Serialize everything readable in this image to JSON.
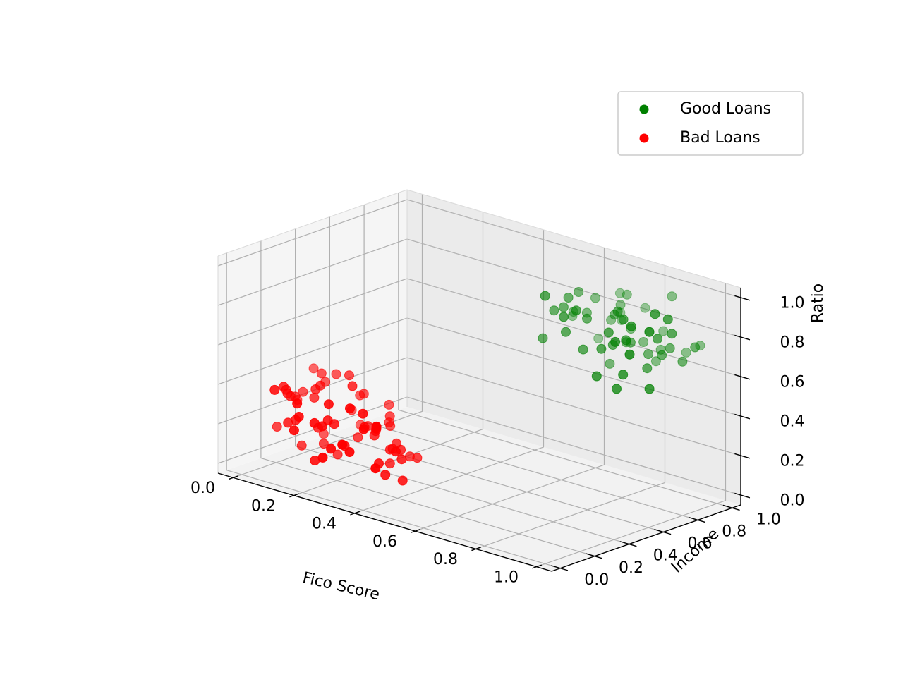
{
  "chart_data": {
    "type": "scatter",
    "projection": "3d",
    "title": "",
    "xlabel": "Fico Score",
    "ylabel": "Income",
    "zlabel": "Ratio",
    "xlim": [
      -0.05,
      1.05
    ],
    "ylim": [
      -0.05,
      1.05
    ],
    "zlim": [
      -0.05,
      1.05
    ],
    "xticks": [
      "0.0",
      "0.2",
      "0.4",
      "0.6",
      "0.8",
      "1.0"
    ],
    "yticks": [
      "0.0",
      "0.2",
      "0.4",
      "0.6",
      "0.8",
      "1.0"
    ],
    "zticks": [
      "0.0",
      "0.2",
      "0.4",
      "0.6",
      "0.8",
      "1.0"
    ],
    "grid": true,
    "legend_position": "top-right",
    "series": [
      {
        "name": "Good Loans",
        "color": "#008000",
        "x": [
          0.71,
          0.93,
          0.82,
          0.66,
          0.95,
          0.74,
          0.88,
          0.69,
          0.97,
          0.79,
          0.85,
          0.63,
          0.91,
          0.77,
          0.68,
          0.99,
          0.83,
          0.72,
          0.94,
          0.87,
          0.65,
          0.8,
          0.96,
          0.73,
          0.9,
          0.76,
          0.84,
          0.67,
          0.92,
          0.78,
          0.7,
          0.98,
          0.86,
          0.64,
          0.89,
          0.75,
          0.81,
          0.95,
          0.69,
          0.83,
          0.72,
          0.9,
          0.66,
          0.87,
          0.78,
          0.97,
          0.74,
          0.85,
          0.62,
          0.93,
          0.8,
          0.71,
          0.96,
          0.68,
          0.88,
          0.76,
          0.84,
          0.91,
          0.73,
          0.82
        ],
        "y": [
          0.62,
          0.85,
          0.74,
          0.91,
          0.58,
          0.68,
          0.95,
          0.79,
          0.66,
          0.87,
          0.72,
          0.64,
          0.98,
          0.81,
          0.7,
          0.89,
          0.6,
          0.93,
          0.76,
          0.83,
          0.67,
          0.96,
          0.71,
          0.86,
          0.63,
          0.9,
          0.78,
          0.69,
          0.82,
          0.97,
          0.65,
          0.75,
          0.92,
          0.8,
          0.61,
          0.88,
          0.73,
          0.99,
          0.84,
          0.67,
          0.94,
          0.77,
          0.6,
          0.7,
          0.86,
          0.79,
          0.64,
          0.91,
          0.83,
          0.73,
          0.68,
          0.95,
          0.87,
          0.76,
          0.62,
          0.8,
          0.97,
          0.66,
          0.72,
          0.89
        ],
        "z": [
          0.88,
          0.75,
          0.92,
          0.66,
          0.81,
          0.71,
          0.96,
          0.84,
          0.62,
          0.78,
          0.9,
          0.73,
          0.68,
          0.86,
          0.94,
          0.77,
          0.64,
          0.91,
          0.83,
          0.7,
          0.87,
          0.74,
          0.98,
          0.8,
          0.67,
          0.93,
          0.76,
          0.89,
          0.72,
          0.85,
          0.79,
          0.95,
          0.69,
          0.82,
          0.6,
          0.88,
          0.75,
          0.73,
          0.9,
          0.84,
          0.77,
          0.66,
          0.97,
          0.81,
          0.71,
          0.86,
          0.92,
          0.63,
          0.78,
          0.87,
          0.74,
          0.8,
          0.69,
          0.95,
          0.83,
          0.61,
          0.76,
          0.91,
          0.85,
          0.72
        ]
      },
      {
        "name": "Bad Loans",
        "color": "#ff0000",
        "x": [
          0.12,
          0.31,
          0.05,
          0.22,
          0.38,
          0.16,
          0.27,
          0.09,
          0.34,
          0.19,
          0.02,
          0.29,
          0.41,
          0.14,
          0.24,
          0.07,
          0.36,
          0.18,
          0.32,
          0.11,
          0.26,
          0.04,
          0.39,
          0.21,
          0.15,
          0.33,
          0.08,
          0.28,
          0.17,
          0.37,
          0.1,
          0.23,
          0.3,
          0.06,
          0.35,
          0.2,
          0.13,
          0.4,
          0.25,
          0.03,
          0.32,
          0.18,
          0.27,
          0.09,
          0.36,
          0.14,
          0.22,
          0.31,
          0.05,
          0.29,
          0.16,
          0.38,
          0.11,
          0.24,
          0.34,
          0.07,
          0.19,
          0.28,
          0.13,
          0.33,
          0.21,
          0.4,
          0.1,
          0.26,
          0.17,
          0.35,
          0.06,
          0.3,
          0.23,
          0.15
        ],
        "y": [
          0.21,
          0.08,
          0.33,
          0.15,
          0.26,
          0.04,
          0.38,
          0.19,
          0.11,
          0.29,
          0.17,
          0.35,
          0.06,
          0.23,
          0.31,
          0.12,
          0.2,
          0.37,
          0.02,
          0.27,
          0.14,
          0.24,
          0.09,
          0.34,
          0.18,
          0.28,
          0.05,
          0.22,
          0.39,
          0.13,
          0.3,
          0.1,
          0.25,
          0.16,
          0.36,
          0.07,
          0.32,
          0.19,
          0.03,
          0.27,
          0.14,
          0.24,
          0.38,
          0.11,
          0.29,
          0.21,
          0.08,
          0.33,
          0.17,
          0.26,
          0.05,
          0.35,
          0.12,
          0.22,
          0.3,
          0.16,
          0.09,
          0.37,
          0.2,
          0.28,
          0.13,
          0.23,
          0.31,
          0.06,
          0.34,
          0.18,
          0.25,
          0.1,
          0.27,
          0.04
        ],
        "z": [
          0.33,
          0.18,
          0.41,
          0.26,
          0.12,
          0.37,
          0.22,
          0.08,
          0.3,
          0.45,
          0.15,
          0.27,
          0.36,
          0.1,
          0.21,
          0.39,
          0.05,
          0.32,
          0.24,
          0.43,
          0.17,
          0.29,
          0.13,
          0.35,
          0.2,
          0.07,
          0.4,
          0.25,
          0.16,
          0.31,
          0.11,
          0.38,
          0.23,
          0.34,
          0.09,
          0.28,
          0.42,
          0.19,
          0.14,
          0.26,
          0.36,
          0.06,
          0.31,
          0.22,
          0.15,
          0.4,
          0.27,
          0.12,
          0.35,
          0.2,
          0.3,
          0.1,
          0.24,
          0.44,
          0.17,
          0.33,
          0.08,
          0.21,
          0.38,
          0.14,
          0.28,
          0.03,
          0.37,
          0.18,
          0.25,
          0.11,
          0.32,
          0.39,
          0.16,
          0.23
        ]
      }
    ]
  }
}
